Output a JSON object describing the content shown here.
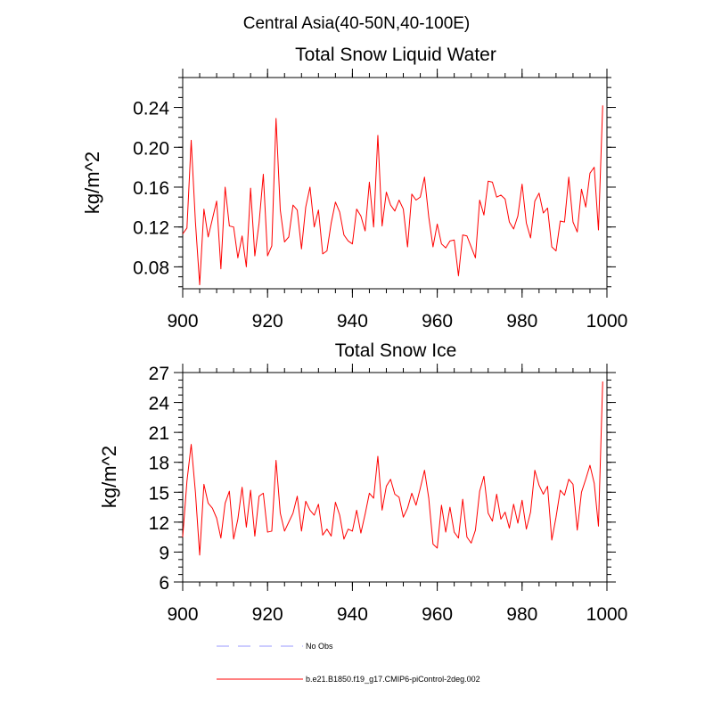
{
  "figure_title": "Central Asia(40-50N,40-100E)",
  "chart_data": [
    {
      "type": "line",
      "title": "Total Snow Liquid Water",
      "xlabel": "",
      "ylabel": "kg/m^2",
      "xlim": [
        900,
        1000
      ],
      "ylim": [
        0.058,
        0.27
      ],
      "xticks": [
        900,
        920,
        940,
        960,
        980,
        1000
      ],
      "xtick_labels": [
        "900",
        "920",
        "940",
        "960",
        "980",
        "1000"
      ],
      "yticks": [
        0.08,
        0.12,
        0.16,
        0.2,
        0.24
      ],
      "ytick_labels": [
        "0.08",
        "0.12",
        "0.16",
        "0.20",
        "0.24"
      ],
      "x_start": 900,
      "x_step": 1,
      "series": [
        {
          "name": "b.e21.B1850.f19_g17.CMIP6-piControl-2deg.002",
          "color": "#ff0000",
          "values": [
            0.113,
            0.119,
            0.207,
            0.125,
            0.062,
            0.138,
            0.11,
            0.128,
            0.146,
            0.078,
            0.16,
            0.121,
            0.12,
            0.089,
            0.111,
            0.08,
            0.159,
            0.091,
            0.124,
            0.173,
            0.091,
            0.101,
            0.229,
            0.137,
            0.105,
            0.11,
            0.142,
            0.137,
            0.098,
            0.14,
            0.16,
            0.12,
            0.137,
            0.093,
            0.096,
            0.124,
            0.145,
            0.135,
            0.112,
            0.106,
            0.103,
            0.138,
            0.131,
            0.116,
            0.165,
            0.12,
            0.212,
            0.121,
            0.155,
            0.142,
            0.136,
            0.147,
            0.138,
            0.1,
            0.153,
            0.147,
            0.15,
            0.17,
            0.13,
            0.1,
            0.123,
            0.103,
            0.099,
            0.106,
            0.107,
            0.071,
            0.112,
            0.111,
            0.1,
            0.089,
            0.147,
            0.132,
            0.166,
            0.165,
            0.15,
            0.152,
            0.148,
            0.125,
            0.118,
            0.131,
            0.163,
            0.124,
            0.109,
            0.146,
            0.154,
            0.134,
            0.139,
            0.1,
            0.096,
            0.126,
            0.125,
            0.17,
            0.125,
            0.115,
            0.158,
            0.14,
            0.174,
            0.18,
            0.117,
            0.242
          ]
        }
      ]
    },
    {
      "type": "line",
      "title": "Total Snow Ice",
      "xlabel": "",
      "ylabel": "kg/m^2",
      "xlim": [
        900,
        1000
      ],
      "ylim": [
        6,
        27
      ],
      "xticks": [
        900,
        920,
        940,
        960,
        980,
        1000
      ],
      "xtick_labels": [
        "900",
        "920",
        "940",
        "960",
        "980",
        "1000"
      ],
      "yticks": [
        6,
        9,
        12,
        15,
        18,
        21,
        24,
        27
      ],
      "ytick_labels": [
        "6",
        "9",
        "12",
        "15",
        "18",
        "21",
        "24",
        "27"
      ],
      "x_start": 900,
      "x_step": 1,
      "series": [
        {
          "name": "b.e21.B1850.f19_g17.CMIP6-piControl-2deg.002",
          "color": "#ff0000",
          "values": [
            10.5,
            16.1,
            19.8,
            15.0,
            8.7,
            15.8,
            13.9,
            13.4,
            12.4,
            10.4,
            13.9,
            15.1,
            10.3,
            12.3,
            15.5,
            11.5,
            15.2,
            10.6,
            14.6,
            14.9,
            11.0,
            11.1,
            18.2,
            12.9,
            11.1,
            12.0,
            12.9,
            14.6,
            11.1,
            14.1,
            13.2,
            12.7,
            13.8,
            10.7,
            11.3,
            10.6,
            14.0,
            12.7,
            10.3,
            11.3,
            11.1,
            13.2,
            10.9,
            12.8,
            14.9,
            14.4,
            18.6,
            13.2,
            15.6,
            16.3,
            14.8,
            14.5,
            12.5,
            13.4,
            14.9,
            13.7,
            15.4,
            17.2,
            14.4,
            9.8,
            9.4,
            13.7,
            11.0,
            13.5,
            11.0,
            10.4,
            14.3,
            10.5,
            9.9,
            11.2,
            15.1,
            16.6,
            12.9,
            12.1,
            14.8,
            12.3,
            13.0,
            11.4,
            13.8,
            11.9,
            14.2,
            11.3,
            13.0,
            17.2,
            15.7,
            14.8,
            15.6,
            10.2,
            12.5,
            15.2,
            14.7,
            16.3,
            15.8,
            11.2,
            15.0,
            16.3,
            17.7,
            15.9,
            11.6,
            26.1
          ]
        }
      ]
    }
  ],
  "legend": {
    "placement": "bottom",
    "items": [
      {
        "label": "No Obs",
        "color": "#9999ff",
        "style": "dashed"
      },
      {
        "label": "b.e21.B1850.f19_g17.CMIP6-piControl-2deg.002",
        "color": "#ff0000",
        "style": "solid"
      }
    ]
  }
}
